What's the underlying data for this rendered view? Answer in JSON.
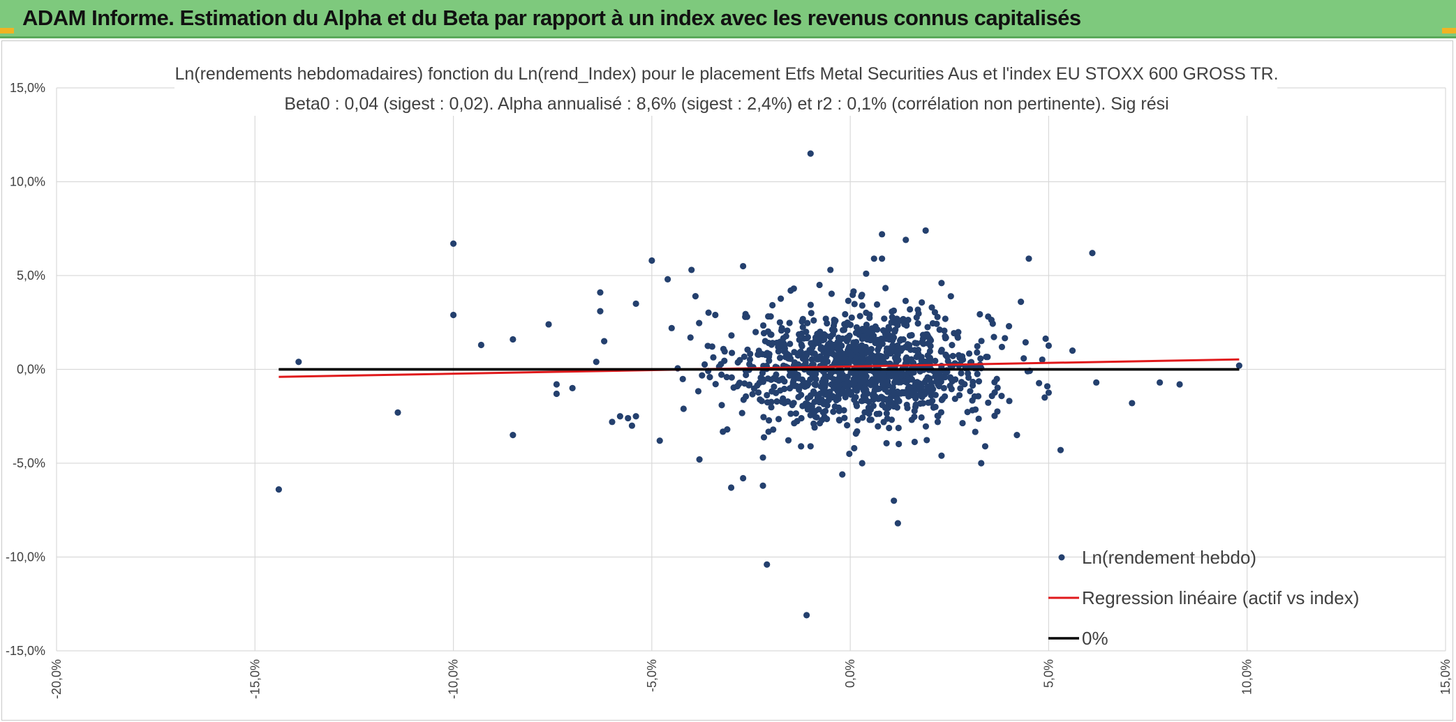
{
  "banner": {
    "title": "ADAM Informe. Estimation du Alpha et du Beta par rapport à un index avec les revenus connus capitalisés"
  },
  "colors": {
    "banner_bg": "#7ec97d",
    "accent_corner": "#f0b323",
    "points": "#24406e",
    "regression": "#e0191b",
    "zero_line": "#000000",
    "grid": "#d9d9d9"
  },
  "chart_data": {
    "type": "scatter",
    "title_lines": [
      "Ln(rendements hebdomadaires) fonction du Ln(rend_Index) pour le placement Etfs Metal Securities Aus et l'index EU STOXX 600 GROSS TR.",
      "Beta0 : 0,04 (sigest : 0,02). Alpha annualisé : 8,6% (sigest : 2,4%) et r2 : 0,1% (corrélation non pertinente). Sig rési"
    ],
    "xlim": [
      -20,
      15
    ],
    "ylim": [
      -15,
      15
    ],
    "x_ticks": [
      -20,
      -15,
      -10,
      -5,
      0,
      5,
      10,
      15
    ],
    "y_ticks": [
      -15,
      -10,
      -5,
      0,
      5,
      10,
      15
    ],
    "x_tick_labels": [
      "-20,0%",
      "-15,0%",
      "-10,0%",
      "-5,0%",
      "0,0%",
      "5,0%",
      "10,0%",
      "15,0%"
    ],
    "y_tick_labels": [
      "-15,0%",
      "-10,0%",
      "-5,0%",
      "0,0%",
      "5,0%",
      "10,0%",
      "15,0%"
    ],
    "grid": true,
    "legend_position": "bottom-right",
    "series": [
      {
        "name": "Ln(rendement hebdo)",
        "kind": "scatter",
        "color": "#24406e",
        "points": [
          [
            -14.4,
            -6.4
          ],
          [
            -13.9,
            0.4
          ],
          [
            -11.4,
            -2.3
          ],
          [
            -10.0,
            6.7
          ],
          [
            -10.0,
            2.9
          ],
          [
            -9.3,
            1.3
          ],
          [
            -8.5,
            1.6
          ],
          [
            -8.5,
            -3.5
          ],
          [
            -7.6,
            2.4
          ],
          [
            -7.4,
            -0.8
          ],
          [
            -7.4,
            -1.3
          ],
          [
            -7.0,
            -1.0
          ],
          [
            -6.4,
            0.4
          ],
          [
            -6.3,
            4.1
          ],
          [
            -6.3,
            3.1
          ],
          [
            -6.2,
            1.5
          ],
          [
            -6.0,
            -2.8
          ],
          [
            -5.8,
            -2.5
          ],
          [
            -5.6,
            -2.6
          ],
          [
            -5.5,
            -3.0
          ],
          [
            -5.4,
            3.5
          ],
          [
            -5.4,
            -2.5
          ],
          [
            -5.0,
            5.8
          ],
          [
            -4.8,
            -3.8
          ],
          [
            -4.6,
            4.8
          ],
          [
            -4.5,
            2.2
          ],
          [
            -4.2,
            -2.1
          ],
          [
            -4.0,
            5.3
          ],
          [
            -3.9,
            3.9
          ],
          [
            -3.8,
            -4.8
          ],
          [
            -3.4,
            2.9
          ],
          [
            -3.1,
            -3.2
          ],
          [
            -3.0,
            -6.3
          ],
          [
            -2.7,
            5.5
          ],
          [
            -2.7,
            -5.8
          ],
          [
            -2.6,
            2.8
          ],
          [
            -2.2,
            -6.2
          ],
          [
            -2.2,
            -4.7
          ],
          [
            -2.1,
            -10.4
          ],
          [
            -1.5,
            4.2
          ],
          [
            -1.1,
            -13.1
          ],
          [
            -1.0,
            11.5
          ],
          [
            -1.0,
            -4.1
          ],
          [
            -0.5,
            5.3
          ],
          [
            -0.2,
            -5.6
          ],
          [
            0.1,
            -4.2
          ],
          [
            0.3,
            -5.0
          ],
          [
            0.4,
            5.1
          ],
          [
            0.6,
            5.9
          ],
          [
            0.8,
            5.9
          ],
          [
            0.8,
            7.2
          ],
          [
            1.1,
            -7.0
          ],
          [
            1.2,
            -8.2
          ],
          [
            1.4,
            6.9
          ],
          [
            1.9,
            7.4
          ],
          [
            2.3,
            4.6
          ],
          [
            2.3,
            -4.6
          ],
          [
            3.3,
            -5.0
          ],
          [
            3.4,
            -4.1
          ],
          [
            4.0,
            2.3
          ],
          [
            4.2,
            -3.5
          ],
          [
            4.3,
            3.6
          ],
          [
            4.5,
            5.9
          ],
          [
            4.9,
            -1.5
          ],
          [
            5.3,
            -4.3
          ],
          [
            5.6,
            1.0
          ],
          [
            6.1,
            6.2
          ],
          [
            6.2,
            -0.7
          ],
          [
            7.1,
            -1.8
          ],
          [
            7.8,
            -0.7
          ],
          [
            8.3,
            -0.8
          ],
          [
            9.8,
            0.2
          ]
        ],
        "cluster": {
          "x_center": 0.3,
          "y_center": 0.1,
          "x_sd": 1.6,
          "y_sd": 1.5,
          "count": 1150,
          "note": "dense cloud of weekly returns around the origin"
        }
      },
      {
        "name": "Regression linéaire (actif vs index)",
        "kind": "line",
        "color": "#e0191b",
        "x": [
          -14.4,
          9.8
        ],
        "y": [
          -0.4,
          0.53
        ]
      },
      {
        "name": "0%",
        "kind": "line",
        "color": "#000000",
        "x": [
          -14.4,
          9.8
        ],
        "y": [
          0,
          0
        ]
      }
    ]
  }
}
